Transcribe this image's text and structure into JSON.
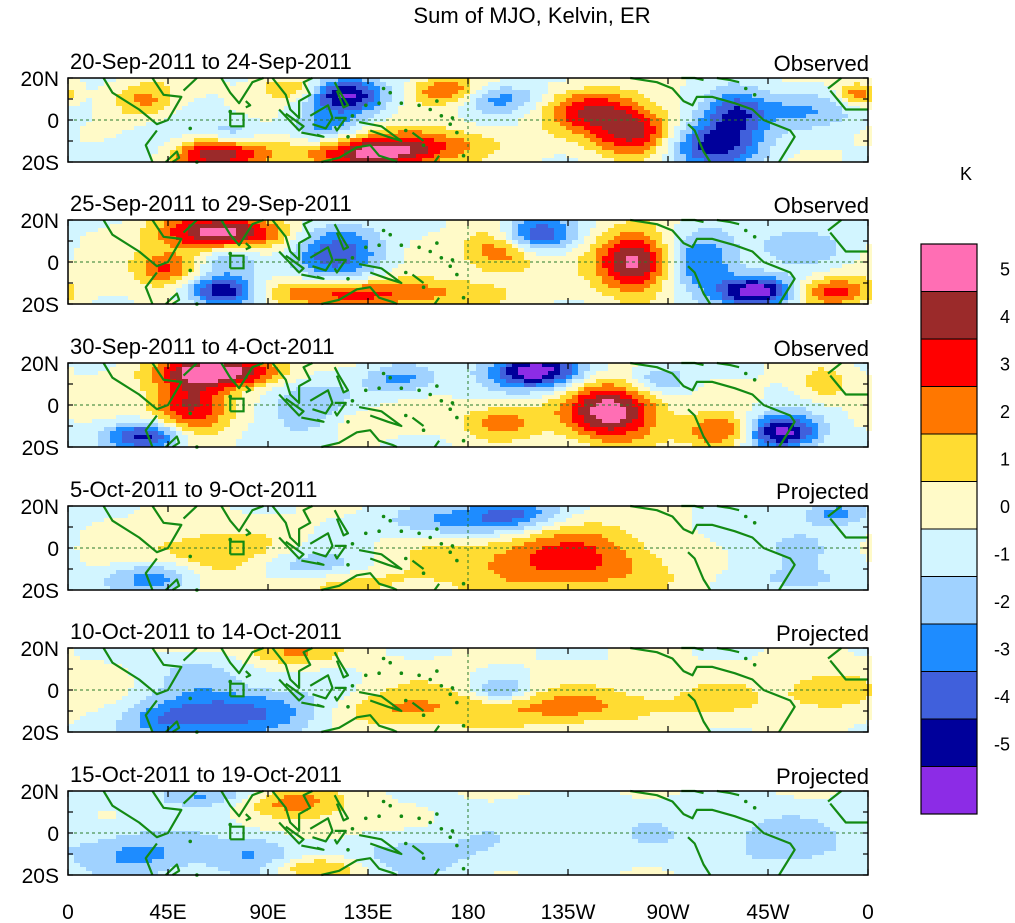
{
  "chart_data": {
    "type": "heatmap",
    "title": "Sum of MJO, Kelvin, ER",
    "colorbar": {
      "unit": "K",
      "labels": [
        "5",
        "4",
        "3",
        "2",
        "1",
        "0",
        "-1",
        "-2",
        "-3",
        "-4",
        "-5"
      ],
      "colors": [
        "#ff6eb4",
        "#9b2a2a",
        "#ff0000",
        "#ff7700",
        "#ffdc32",
        "#fffac8",
        "#d2f5ff",
        "#a0d2ff",
        "#1e8cff",
        "#4060dc",
        "#00009b",
        "#8c2ce6"
      ]
    },
    "x_ticks": [
      "0",
      "45E",
      "90E",
      "135E",
      "180",
      "135W",
      "90W",
      "45W",
      "0"
    ],
    "y_ticks": [
      "20N",
      "0",
      "20S"
    ],
    "x_range": [
      0,
      360
    ],
    "y_range": [
      -20,
      20
    ],
    "panels": [
      {
        "period": "20-Sep-2011 to 24-Sep-2011",
        "status": "Observed",
        "blobs": [
          [
            65,
            -16,
            18,
            6,
            5
          ],
          [
            140,
            -15,
            22,
            6,
            5
          ],
          [
            125,
            12,
            12,
            6,
            -4.5
          ],
          [
            115,
            -5,
            12,
            6,
            -2
          ],
          [
            170,
            14,
            10,
            5,
            3
          ],
          [
            195,
            10,
            15,
            5,
            -2
          ],
          [
            235,
            5,
            16,
            7,
            3
          ],
          [
            255,
            -6,
            14,
            8,
            4
          ],
          [
            290,
            -12,
            15,
            8,
            -4
          ],
          [
            300,
            3,
            10,
            8,
            -3
          ],
          [
            330,
            5,
            25,
            6,
            -1.5
          ],
          [
            45,
            -15,
            15,
            7,
            -2
          ],
          [
            35,
            10,
            10,
            6,
            2
          ],
          [
            75,
            -7,
            10,
            5,
            -2
          ],
          [
            180,
            -10,
            20,
            5,
            1
          ],
          [
            355,
            12,
            6,
            4,
            2.5
          ],
          [
            100,
            15,
            10,
            4,
            2
          ]
        ]
      },
      {
        "period": "25-Sep-2011 to 29-Sep-2011",
        "status": "Observed",
        "blobs": [
          [
            70,
            14,
            20,
            6,
            5
          ],
          [
            45,
            -3,
            10,
            6,
            3
          ],
          [
            70,
            -14,
            12,
            5,
            -5
          ],
          [
            130,
            -15,
            40,
            5,
            3
          ],
          [
            120,
            5,
            15,
            10,
            -3
          ],
          [
            195,
            6,
            12,
            8,
            3
          ],
          [
            210,
            13,
            12,
            6,
            -4
          ],
          [
            255,
            0,
            12,
            10,
            5
          ],
          [
            285,
            0,
            12,
            10,
            -3
          ],
          [
            310,
            -14,
            12,
            5,
            -5
          ],
          [
            345,
            -14,
            12,
            5,
            3
          ],
          [
            75,
            2,
            10,
            6,
            -2
          ],
          [
            330,
            8,
            15,
            6,
            -1.5
          ]
        ]
      },
      {
        "period": "30-Sep-2011 to 4-Oct-2011",
        "status": "Observed",
        "blobs": [
          [
            70,
            16,
            20,
            5,
            5
          ],
          [
            55,
            0,
            12,
            10,
            4
          ],
          [
            35,
            -15,
            12,
            5,
            -4
          ],
          [
            105,
            0,
            15,
            12,
            -1.5
          ],
          [
            210,
            16,
            15,
            6,
            -5
          ],
          [
            245,
            -3,
            15,
            10,
            5
          ],
          [
            195,
            -8,
            12,
            6,
            2.5
          ],
          [
            295,
            -13,
            12,
            6,
            3
          ],
          [
            320,
            -13,
            12,
            6,
            -5
          ],
          [
            340,
            10,
            8,
            6,
            1.5
          ],
          [
            150,
            12,
            12,
            5,
            -2
          ],
          [
            265,
            12,
            10,
            5,
            -2
          ],
          [
            130,
            -8,
            10,
            5,
            1
          ]
        ]
      },
      {
        "period": "5-Oct-2011 to 9-Oct-2011",
        "status": "Projected",
        "blobs": [
          [
            60,
            -5,
            25,
            10,
            2
          ],
          [
            40,
            -14,
            15,
            6,
            -3
          ],
          [
            225,
            -5,
            40,
            12,
            3
          ],
          [
            105,
            -10,
            20,
            6,
            -2
          ],
          [
            170,
            12,
            20,
            6,
            -2
          ],
          [
            200,
            16,
            15,
            6,
            -3
          ],
          [
            120,
            -16,
            25,
            5,
            1.5
          ],
          [
            300,
            0,
            40,
            10,
            -1
          ],
          [
            330,
            -16,
            20,
            5,
            -1
          ],
          [
            345,
            17,
            10,
            4,
            -2
          ]
        ]
      },
      {
        "period": "10-Oct-2011 to 14-Oct-2011",
        "status": "Projected",
        "blobs": [
          [
            80,
            -10,
            25,
            8,
            -3
          ],
          [
            45,
            -15,
            15,
            6,
            -2
          ],
          [
            100,
            18,
            15,
            4,
            2
          ],
          [
            140,
            -10,
            20,
            6,
            1.5
          ],
          [
            190,
            -10,
            20,
            6,
            1.5
          ],
          [
            230,
            -8,
            20,
            6,
            1.5
          ],
          [
            280,
            -5,
            30,
            8,
            1
          ],
          [
            340,
            0,
            15,
            8,
            1.5
          ],
          [
            160,
            0,
            25,
            8,
            0.5
          ],
          [
            60,
            8,
            15,
            6,
            -1
          ],
          [
            195,
            0,
            8,
            4,
            -2
          ]
        ]
      },
      {
        "period": "15-Oct-2011 to 19-Oct-2011",
        "status": "Projected",
        "blobs": [
          [
            30,
            -10,
            20,
            8,
            -2
          ],
          [
            85,
            -10,
            15,
            8,
            -2
          ],
          [
            100,
            15,
            15,
            5,
            2
          ],
          [
            120,
            0,
            20,
            10,
            1
          ],
          [
            150,
            -10,
            25,
            8,
            -1.5
          ],
          [
            60,
            18,
            15,
            4,
            -2
          ],
          [
            260,
            0,
            60,
            10,
            -0.6
          ],
          [
            320,
            -5,
            20,
            10,
            -1
          ],
          [
            110,
            -17,
            15,
            4,
            2
          ]
        ]
      }
    ]
  }
}
